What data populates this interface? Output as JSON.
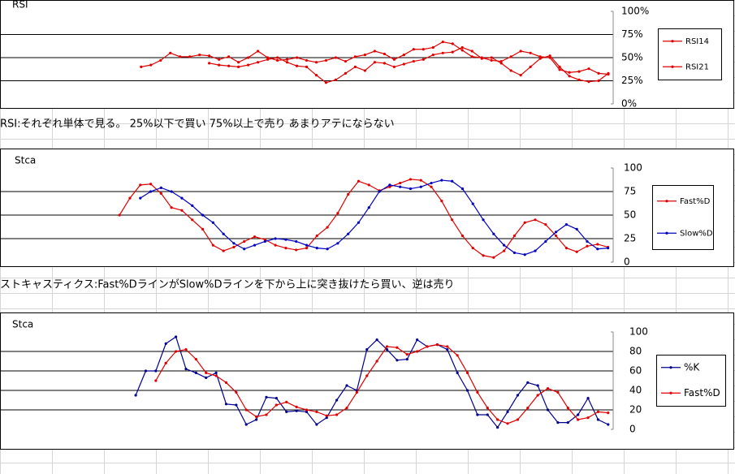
{
  "chart_data": [
    {
      "type": "line",
      "title": "RSI",
      "legend": "right",
      "grid": true,
      "categories": [
        null,
        null,
        null,
        null,
        null,
        null,
        null,
        null,
        null,
        null,
        null,
        null,
        null,
        null,
        null,
        null,
        null,
        null,
        null,
        null,
        null,
        null,
        null,
        null,
        null,
        null,
        null,
        null,
        null,
        null,
        null,
        null,
        null,
        null,
        null,
        null,
        null,
        null,
        null,
        null,
        null,
        null,
        null,
        null,
        null,
        null,
        null,
        null,
        null,
        null,
        null,
        null,
        null,
        null,
        null,
        null,
        null,
        null,
        null,
        null,
        null,
        null,
        null
      ],
      "ylim": [
        0,
        100
      ],
      "yticks": [
        {
          "value": 0,
          "label": "0%"
        },
        {
          "value": 25,
          "label": "25%"
        },
        {
          "value": 50,
          "label": "50%"
        },
        {
          "value": 75,
          "label": "75%"
        },
        {
          "value": 100,
          "label": "100%"
        }
      ],
      "series": [
        {
          "name": "RSI14",
          "color": "#e00000",
          "values": [
            null,
            null,
            null,
            null,
            null,
            null,
            null,
            null,
            null,
            null,
            null,
            null,
            null,
            null,
            40,
            42,
            47,
            55,
            51,
            51,
            53,
            52,
            48,
            51,
            45,
            50,
            57,
            50,
            47,
            48,
            50,
            47,
            45,
            47,
            50,
            46,
            51,
            53,
            57,
            54,
            48,
            53,
            59,
            59,
            61,
            67,
            65,
            58,
            51,
            50,
            47,
            46,
            51,
            57,
            55,
            51,
            50,
            37,
            34,
            35,
            38,
            33,
            32
          ]
        },
        {
          "name": "RSI21",
          "color": "#e00000",
          "values": [
            null,
            null,
            null,
            null,
            null,
            null,
            null,
            null,
            null,
            null,
            null,
            null,
            null,
            null,
            null,
            null,
            null,
            null,
            null,
            null,
            null,
            44,
            42,
            41,
            40,
            42,
            45,
            48,
            50,
            45,
            41,
            40,
            31,
            23,
            26,
            33,
            40,
            36,
            45,
            44,
            40,
            43,
            46,
            48,
            53,
            55,
            56,
            61,
            57,
            49,
            50,
            44,
            36,
            31,
            40,
            49,
            52,
            40,
            30,
            26,
            24,
            25,
            33
          ]
        }
      ]
    },
    {
      "type": "line",
      "title": "Stca",
      "legend": "right",
      "grid": true,
      "categories": [
        null,
        null,
        null,
        null,
        null,
        null,
        null,
        null,
        null,
        null,
        null,
        null,
        null,
        null,
        null,
        null,
        null,
        null,
        null,
        null,
        null,
        null,
        null,
        null,
        null,
        null,
        null,
        null,
        null,
        null,
        null,
        null,
        null,
        null,
        null,
        null,
        null,
        null,
        null,
        null,
        null,
        null,
        null,
        null,
        null,
        null,
        null,
        null,
        null,
        null,
        null,
        null,
        null,
        null,
        null,
        null,
        null,
        null,
        null
      ],
      "ylim": [
        0,
        100
      ],
      "yticks": [
        0,
        25,
        50,
        75,
        100
      ],
      "series": [
        {
          "name": "Fast%D",
          "color": "#e00000",
          "values": [
            null,
            null,
            null,
            null,
            null,
            null,
            null,
            null,
            null,
            null,
            null,
            50,
            68,
            82,
            83,
            73,
            58,
            55,
            45,
            35,
            18,
            12,
            16,
            22,
            27,
            24,
            18,
            15,
            13,
            15,
            28,
            37,
            52,
            72,
            86,
            82,
            76,
            80,
            84,
            88,
            87,
            80,
            65,
            45,
            28,
            15,
            7,
            5,
            12,
            28,
            42,
            45,
            40,
            28,
            15,
            11,
            17,
            19,
            16
          ]
        },
        {
          "name": "Slow%D",
          "color": "#0000c0",
          "values": [
            null,
            null,
            null,
            null,
            null,
            null,
            null,
            null,
            null,
            null,
            null,
            null,
            null,
            68,
            75,
            79,
            75,
            68,
            60,
            50,
            42,
            30,
            20,
            14,
            18,
            22,
            25,
            24,
            22,
            18,
            15,
            14,
            20,
            30,
            42,
            58,
            75,
            82,
            80,
            78,
            80,
            84,
            87,
            86,
            78,
            62,
            45,
            30,
            18,
            10,
            8,
            12,
            22,
            32,
            40,
            35,
            22,
            14,
            15
          ]
        }
      ]
    },
    {
      "type": "line",
      "title": "Stca",
      "legend": "right",
      "grid": true,
      "categories": [
        null,
        null,
        null,
        null,
        null,
        null,
        null,
        null,
        null,
        null,
        null,
        null,
        null,
        null,
        null,
        null,
        null,
        null,
        null,
        null,
        null,
        null,
        null,
        null,
        null,
        null,
        null,
        null,
        null,
        null,
        null,
        null,
        null,
        null,
        null,
        null,
        null,
        null,
        null,
        null,
        null,
        null,
        null,
        null,
        null,
        null,
        null,
        null,
        null,
        null,
        null,
        null,
        null,
        null,
        null,
        null,
        null,
        null,
        null,
        null,
        null
      ],
      "ylim": [
        0,
        100
      ],
      "yticks": [
        0,
        20,
        40,
        60,
        80,
        100
      ],
      "series": [
        {
          "name": "%K",
          "color": "#000090",
          "values": [
            null,
            null,
            null,
            null,
            null,
            null,
            null,
            null,
            null,
            null,
            null,
            null,
            null,
            35,
            60,
            60,
            88,
            95,
            62,
            58,
            53,
            58,
            26,
            25,
            5,
            10,
            33,
            32,
            18,
            19,
            18,
            5,
            12,
            30,
            45,
            40,
            82,
            92,
            82,
            71,
            72,
            92,
            85,
            87,
            82,
            58,
            40,
            15,
            15,
            2,
            18,
            35,
            48,
            45,
            20,
            7,
            7,
            15,
            32,
            10,
            5
          ]
        },
        {
          "name": "Fast%D",
          "color": "#e00000",
          "values": [
            null,
            null,
            null,
            null,
            null,
            null,
            null,
            null,
            null,
            null,
            null,
            null,
            null,
            null,
            null,
            50,
            68,
            80,
            82,
            72,
            58,
            55,
            48,
            38,
            20,
            13,
            15,
            25,
            28,
            23,
            20,
            18,
            14,
            15,
            22,
            38,
            55,
            70,
            85,
            84,
            77,
            80,
            85,
            87,
            85,
            76,
            58,
            38,
            22,
            10,
            6,
            10,
            22,
            35,
            42,
            38,
            22,
            10,
            12,
            18,
            17
          ]
        }
      ]
    }
  ],
  "notes": [
    "RSI:それぞれ単体で見る。 25%以下で買い 75%以上で売り あまりアテにならない",
    "ストキャスティクス:Fast%DラインがSlow%Dラインを下から上に突き抜けたら買い、逆は売り"
  ]
}
